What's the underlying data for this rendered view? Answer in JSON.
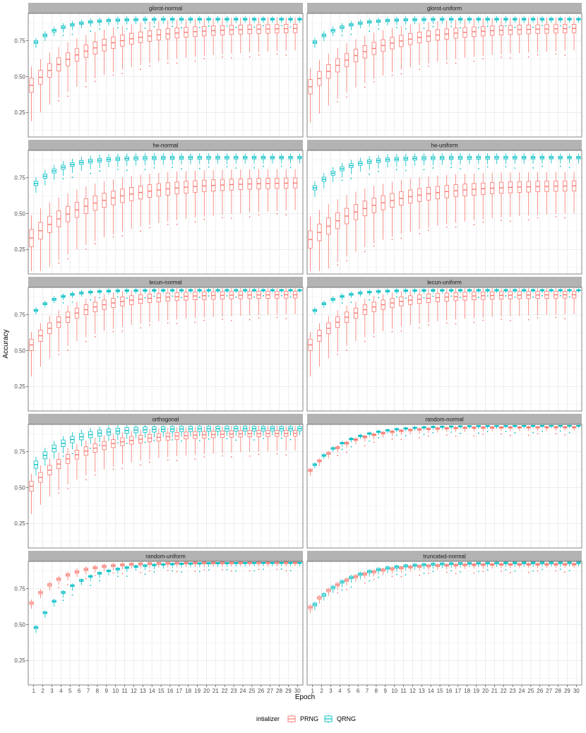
{
  "chart_data": {
    "type": "boxplot",
    "xlabel": "Epoch",
    "ylabel": "Accuracy",
    "x": [
      1,
      2,
      3,
      4,
      5,
      6,
      7,
      8,
      9,
      10,
      11,
      12,
      13,
      14,
      15,
      16,
      17,
      18,
      19,
      20,
      21,
      22,
      23,
      24,
      25,
      26,
      27,
      28,
      29,
      30
    ],
    "x_ticks": [
      "1",
      "2",
      "3",
      "4",
      "5",
      "6",
      "7",
      "8",
      "9",
      "10",
      "11",
      "12",
      "13",
      "14",
      "15",
      "16",
      "17",
      "18",
      "19",
      "20",
      "21",
      "22",
      "23",
      "24",
      "25",
      "26",
      "27",
      "28",
      "29",
      "30"
    ],
    "y_ticks": [
      "0.25",
      "0.50",
      "0.75"
    ],
    "ylim": [
      0.08,
      0.94
    ],
    "grid": true,
    "legend": {
      "position": "bottom",
      "title": "intializer",
      "entries": [
        {
          "name": "PRNG",
          "color": "#F8766D"
        },
        {
          "name": "QRNG",
          "color": "#00BFC4"
        }
      ]
    },
    "panels": [
      {
        "title": "glorot-normal",
        "PRNG": {
          "start_median": 0.44,
          "end_median": 0.84,
          "k": 0.15,
          "iqr": 0.1,
          "whisker_low": 0.2,
          "whisker_high": 0.08
        },
        "QRNG": {
          "start_median": 0.74,
          "end_median": 0.9,
          "k": 0.35,
          "iqr": 0.02,
          "whisker_low": 0.03,
          "whisker_high": 0.02
        }
      },
      {
        "title": "glorot-uniform",
        "PRNG": {
          "start_median": 0.43,
          "end_median": 0.84,
          "k": 0.15,
          "iqr": 0.1,
          "whisker_low": 0.2,
          "whisker_high": 0.08
        },
        "QRNG": {
          "start_median": 0.74,
          "end_median": 0.9,
          "k": 0.35,
          "iqr": 0.02,
          "whisker_low": 0.03,
          "whisker_high": 0.02
        }
      },
      {
        "title": "he-normal",
        "PRNG": {
          "start_median": 0.33,
          "end_median": 0.72,
          "k": 0.14,
          "iqr": 0.12,
          "whisker_low": 0.25,
          "whisker_high": 0.1
        },
        "QRNG": {
          "start_median": 0.71,
          "end_median": 0.89,
          "k": 0.33,
          "iqr": 0.03,
          "whisker_low": 0.05,
          "whisker_high": 0.03
        }
      },
      {
        "title": "he-uniform",
        "PRNG": {
          "start_median": 0.32,
          "end_median": 0.7,
          "k": 0.14,
          "iqr": 0.12,
          "whisker_low": 0.25,
          "whisker_high": 0.1
        },
        "QRNG": {
          "start_median": 0.68,
          "end_median": 0.89,
          "k": 0.33,
          "iqr": 0.03,
          "whisker_low": 0.05,
          "whisker_high": 0.03
        }
      },
      {
        "title": "lecun-normal",
        "PRNG": {
          "start_median": 0.54,
          "end_median": 0.89,
          "k": 0.2,
          "iqr": 0.08,
          "whisker_low": 0.18,
          "whisker_high": 0.05
        },
        "QRNG": {
          "start_median": 0.78,
          "end_median": 0.92,
          "k": 0.4,
          "iqr": 0.015,
          "whisker_low": 0.02,
          "whisker_high": 0.015
        }
      },
      {
        "title": "lecun-uniform",
        "PRNG": {
          "start_median": 0.54,
          "end_median": 0.89,
          "k": 0.2,
          "iqr": 0.08,
          "whisker_low": 0.18,
          "whisker_high": 0.05
        },
        "QRNG": {
          "start_median": 0.78,
          "end_median": 0.92,
          "k": 0.4,
          "iqr": 0.015,
          "whisker_low": 0.02,
          "whisker_high": 0.015
        }
      },
      {
        "title": "orthogonal",
        "PRNG": {
          "start_median": 0.51,
          "end_median": 0.88,
          "k": 0.18,
          "iqr": 0.07,
          "whisker_low": 0.16,
          "whisker_high": 0.05
        },
        "QRNG": {
          "start_median": 0.66,
          "end_median": 0.91,
          "k": 0.3,
          "iqr": 0.05,
          "whisker_low": 0.05,
          "whisker_high": 0.03
        }
      },
      {
        "title": "random-normal",
        "PRNG": {
          "start_median": 0.62,
          "end_median": 0.92,
          "k": 0.25,
          "iqr": 0.015,
          "whisker_low": 0.03,
          "whisker_high": 0.01
        },
        "QRNG": {
          "start_median": 0.66,
          "end_median": 0.93,
          "k": 0.27,
          "iqr": 0.012,
          "whisker_low": 0.02,
          "whisker_high": 0.01
        }
      },
      {
        "title": "random-uniform",
        "PRNG": {
          "start_median": 0.65,
          "end_median": 0.93,
          "k": 0.3,
          "iqr": 0.02,
          "whisker_low": 0.03,
          "whisker_high": 0.015
        },
        "QRNG": {
          "start_median": 0.48,
          "end_median": 0.93,
          "k": 0.26,
          "iqr": 0.015,
          "whisker_low": 0.03,
          "whisker_high": 0.01
        }
      },
      {
        "title": "truncated-normal",
        "PRNG": {
          "start_median": 0.62,
          "end_median": 0.92,
          "k": 0.25,
          "iqr": 0.02,
          "whisker_low": 0.03,
          "whisker_high": 0.01
        },
        "QRNG": {
          "start_median": 0.64,
          "end_median": 0.93,
          "k": 0.26,
          "iqr": 0.02,
          "whisker_low": 0.03,
          "whisker_high": 0.01
        }
      }
    ]
  }
}
